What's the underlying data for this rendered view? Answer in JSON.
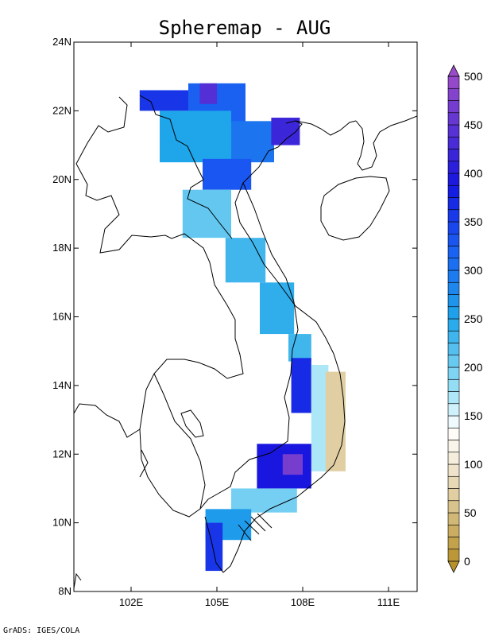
{
  "title": "Spheremap - AUG",
  "credit": "GrADS: IGES/COLA",
  "map": {
    "lon_range": [
      100.0,
      112.0
    ],
    "lat_range": [
      8.0,
      24.0
    ],
    "x_ticks": [
      {
        "value": 102,
        "label": "102E"
      },
      {
        "value": 105,
        "label": "105E"
      },
      {
        "value": 108,
        "label": "108E"
      },
      {
        "value": 111,
        "label": "111E"
      }
    ],
    "y_ticks": [
      {
        "value": 8,
        "label": "8N"
      },
      {
        "value": 10,
        "label": "10N"
      },
      {
        "value": 12,
        "label": "12N"
      },
      {
        "value": 14,
        "label": "14N"
      },
      {
        "value": 16,
        "label": "16N"
      },
      {
        "value": 18,
        "label": "18N"
      },
      {
        "value": 20,
        "label": "20N"
      },
      {
        "value": 22,
        "label": "22N"
      },
      {
        "value": 24,
        "label": "24N"
      }
    ]
  },
  "colorbar": {
    "min": 0,
    "max": 500,
    "step": 12.5,
    "labels": [
      "0",
      "50",
      "100",
      "150",
      "200",
      "250",
      "300",
      "350",
      "400",
      "450",
      "500"
    ],
    "stops": [
      {
        "v": 0,
        "color": "#b8912c"
      },
      {
        "v": 100,
        "color": "#f3ead6"
      },
      {
        "v": 137.5,
        "color": "#ffffff"
      },
      {
        "v": 175,
        "color": "#9ee3f6"
      },
      {
        "v": 250,
        "color": "#1fa6ea"
      },
      {
        "v": 325,
        "color": "#1a5cf2"
      },
      {
        "v": 387.5,
        "color": "#1616e0"
      },
      {
        "v": 500,
        "color": "#9a4cc8"
      }
    ]
  },
  "chart_data": {
    "type": "heatmap",
    "title": "Spheremap - AUG",
    "xlabel": "",
    "ylabel": "",
    "xlim": [
      100,
      112
    ],
    "ylim": [
      8,
      24
    ],
    "value_range": [
      0,
      500
    ],
    "regions": [
      {
        "lon": [
          104.0,
          106.0
        ],
        "lat": [
          21.0,
          22.8
        ],
        "value": 320
      },
      {
        "lon": [
          102.3,
          104.0
        ],
        "lat": [
          22.0,
          22.6
        ],
        "value": 360
      },
      {
        "lon": [
          104.4,
          105.0
        ],
        "lat": [
          22.2,
          22.8
        ],
        "value": 440
      },
      {
        "lon": [
          103.0,
          105.5
        ],
        "lat": [
          20.5,
          22.0
        ],
        "value": 250
      },
      {
        "lon": [
          105.5,
          107.0
        ],
        "lat": [
          20.5,
          21.7
        ],
        "value": 300
      },
      {
        "lon": [
          106.9,
          107.9
        ],
        "lat": [
          21.0,
          21.8
        ],
        "value": 420
      },
      {
        "lon": [
          104.5,
          106.2
        ],
        "lat": [
          19.7,
          20.6
        ],
        "value": 330
      },
      {
        "lon": [
          103.8,
          105.5
        ],
        "lat": [
          18.3,
          19.7
        ],
        "value": 210
      },
      {
        "lon": [
          105.3,
          106.7
        ],
        "lat": [
          17.0,
          18.3
        ],
        "value": 230
      },
      {
        "lon": [
          106.5,
          107.7
        ],
        "lat": [
          15.5,
          17.0
        ],
        "value": 240
      },
      {
        "lon": [
          107.5,
          108.3
        ],
        "lat": [
          14.7,
          15.5
        ],
        "value": 230
      },
      {
        "lon": [
          107.6,
          108.3
        ],
        "lat": [
          13.2,
          14.8
        ],
        "value": 370
      },
      {
        "lon": [
          108.3,
          108.9
        ],
        "lat": [
          11.5,
          14.6
        ],
        "value": 170
      },
      {
        "lon": [
          108.8,
          109.5
        ],
        "lat": [
          11.5,
          14.4
        ],
        "value": 70
      },
      {
        "lon": [
          106.4,
          108.3
        ],
        "lat": [
          11.0,
          12.3
        ],
        "value": 390
      },
      {
        "lon": [
          107.3,
          108.0
        ],
        "lat": [
          11.4,
          12.0
        ],
        "value": 470
      },
      {
        "lon": [
          105.5,
          107.8
        ],
        "lat": [
          10.3,
          11.0
        ],
        "value": 200
      },
      {
        "lon": [
          104.6,
          106.2
        ],
        "lat": [
          9.5,
          10.4
        ],
        "value": 260
      },
      {
        "lon": [
          104.6,
          105.2
        ],
        "lat": [
          8.6,
          10.0
        ],
        "value": 360
      }
    ]
  }
}
